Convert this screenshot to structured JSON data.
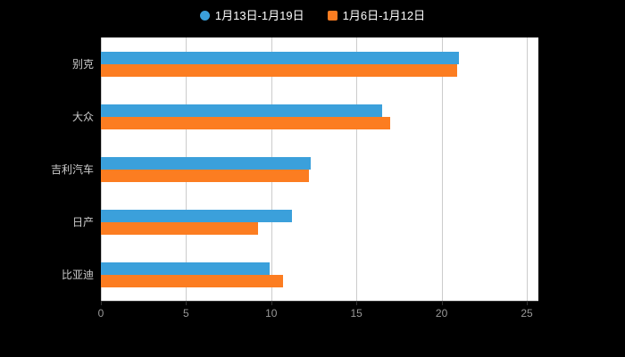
{
  "chart_data": {
    "type": "bar",
    "orientation": "horizontal",
    "title": "",
    "xlabel": "",
    "ylabel": "",
    "categories": [
      "别克",
      "大众",
      "吉利汽车",
      "日产",
      "比亚迪"
    ],
    "series": [
      {
        "name": "1月13日-1月19日",
        "color": "#3ba0db",
        "marker": "circle",
        "values": [
          21.0,
          16.5,
          12.3,
          11.2,
          9.9
        ]
      },
      {
        "name": "1月6日-1月12日",
        "color": "#fc7d21",
        "marker": "square",
        "values": [
          20.9,
          17.0,
          12.2,
          9.2,
          10.7
        ]
      }
    ],
    "xlim": [
      0,
      25
    ],
    "x_ticks": [
      "0",
      "5",
      "10",
      "15",
      "20",
      "25"
    ],
    "x_tick_values": [
      0,
      5,
      10,
      15,
      20,
      25
    ],
    "legend_position": "top",
    "grid": true
  },
  "colors": {
    "background": "#000000",
    "plot_background": "#ffffff",
    "gridline": "#cccccc",
    "axis_line": "#333333",
    "x_tick_label": "#999999",
    "category_label": "#cccccc",
    "legend_text": "#ffffff"
  }
}
